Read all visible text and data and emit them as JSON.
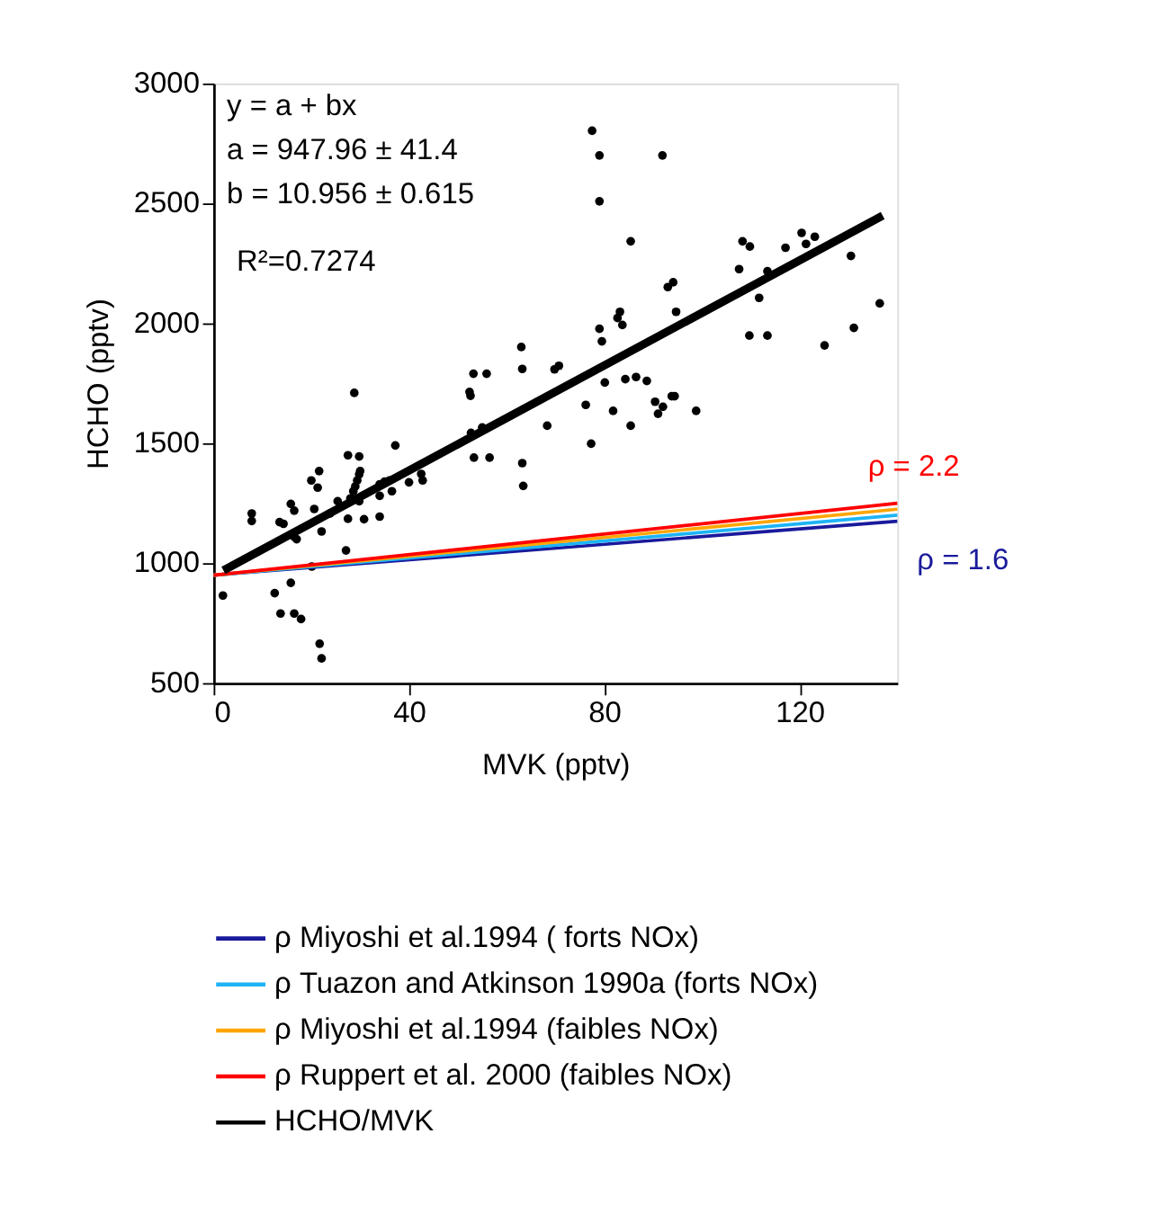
{
  "chart_data": {
    "type": "scatter",
    "xlabel": "MVK (pptv)",
    "ylabel": "HCHO (pptv)",
    "xlim": [
      0,
      140
    ],
    "xticks": [
      0,
      40,
      80,
      120
    ],
    "ylim": [
      500,
      3000
    ],
    "yticks": [
      500,
      1000,
      1500,
      2000,
      2500,
      3000
    ],
    "grid": false,
    "legend": "bottom",
    "annotations": [
      "y = a + bx",
      "a = 947.96 ± 41.4",
      "b = 10.956 ± 0.615",
      "R²=0.7274",
      {
        "text": "ρ = 2.2",
        "x": 140,
        "y": 1250
      },
      {
        "text": "ρ = 1.6",
        "x": 140,
        "y": 1175
      }
    ],
    "series": [
      {
        "marker": "circle",
        "color": "#000000",
        "x": [
          1.9,
          7.8,
          7.8,
          12.5,
          13.5,
          14.3,
          13.7,
          15.8,
          16.5,
          15.8,
          16.5,
          16.5,
          17.0,
          17.9,
          20.1,
          20.0,
          20.6,
          21.3,
          21.6,
          21.7,
          22.1,
          22.1,
          23.8,
          25.4,
          27.1,
          27.5,
          27.5,
          28.0,
          28.6,
          29.0,
          29.4,
          30.0,
          28.8,
          29.8,
          29.8,
          29.8,
          30.8,
          34.0,
          34.0,
          34.0,
          35.0,
          36.0,
          36.5,
          37.2,
          40.0,
          42.5,
          42.8,
          52.4,
          52.6,
          53.2,
          55.9,
          52.7,
          55.0,
          53.3,
          56.5,
          63.0,
          63.2,
          68.3,
          63.2,
          63.4,
          69.8,
          70.7,
          77.5,
          79.0,
          91.9,
          79.0,
          85.4,
          77.3,
          76.2,
          80.1,
          79.0,
          79.5,
          82.7,
          83.2,
          83.7,
          81.8,
          84.3,
          86.5,
          88.7,
          85.4,
          90.4,
          92.0,
          91.0,
          93.8,
          94.4,
          93.0,
          94.1,
          94.7,
          98.8,
          107.6,
          108.3,
          109.8,
          111.7,
          109.7,
          113.4,
          113.4,
          117.1,
          120.4,
          121.3,
          123.1,
          125.1,
          130.5,
          131.1,
          136.4
        ],
        "values": [
          865,
          1207,
          1176,
          875,
          1171,
          1164,
          790,
          1247,
          1219,
          918,
          790,
          1110,
          1100,
          767,
          986,
          1345,
          1226,
          1315,
          1384,
          664,
          603,
          1132,
          1207,
          1258,
          1053,
          1450,
          1185,
          1270,
          1300,
          1320,
          1345,
          1384,
          1710,
          1445,
          1370,
          1258,
          1183,
          1281,
          1329,
          1194,
          1340,
          1345,
          1300,
          1491,
          1337,
          1372,
          1345,
          1714,
          1698,
          1790,
          1790,
          1543,
          1566,
          1440,
          1440,
          1901,
          1810,
          1573,
          1417,
          1322,
          1808,
          1823,
          2803,
          2700,
          2700,
          2509,
          2342,
          1498,
          1660,
          1753,
          1977,
          1925,
          2022,
          2048,
          1993,
          1635,
          1767,
          1776,
          1760,
          1573,
          1673,
          1652,
          1623,
          1696,
          1696,
          2151,
          2171,
          2048,
          1635,
          2226,
          2342,
          2320,
          2106,
          1949,
          1949,
          2217,
          2315,
          2377,
          2331,
          2361,
          1908,
          2281,
          1981,
          2083
        ]
      },
      {
        "type": "line",
        "name": "ρ  Miyoshi et al.1994 ( forts NOx)",
        "color": "#1a1a9c",
        "x": [
          0,
          140
        ],
        "values": [
          950,
          1175
        ]
      },
      {
        "type": "line",
        "name": "ρ  Tuazon and Atkinson 1990a (forts NOx)",
        "color": "#1eb4f5",
        "x": [
          0,
          140
        ],
        "values": [
          950,
          1200
        ]
      },
      {
        "type": "line",
        "name": "ρ  Miyoshi et al.1994 (faibles NOx)",
        "color": "#ffa500",
        "x": [
          0,
          140
        ],
        "values": [
          950,
          1225
        ]
      },
      {
        "type": "line",
        "name": "ρ   Ruppert et al. 2000 (faibles NOx)",
        "color": "#ff0000",
        "x": [
          0,
          140
        ],
        "values": [
          950,
          1250
        ]
      },
      {
        "type": "line",
        "name": "HCHO/MVK",
        "color": "#000000",
        "x": [
          2,
          137
        ],
        "values": [
          970,
          2449
        ]
      }
    ]
  }
}
